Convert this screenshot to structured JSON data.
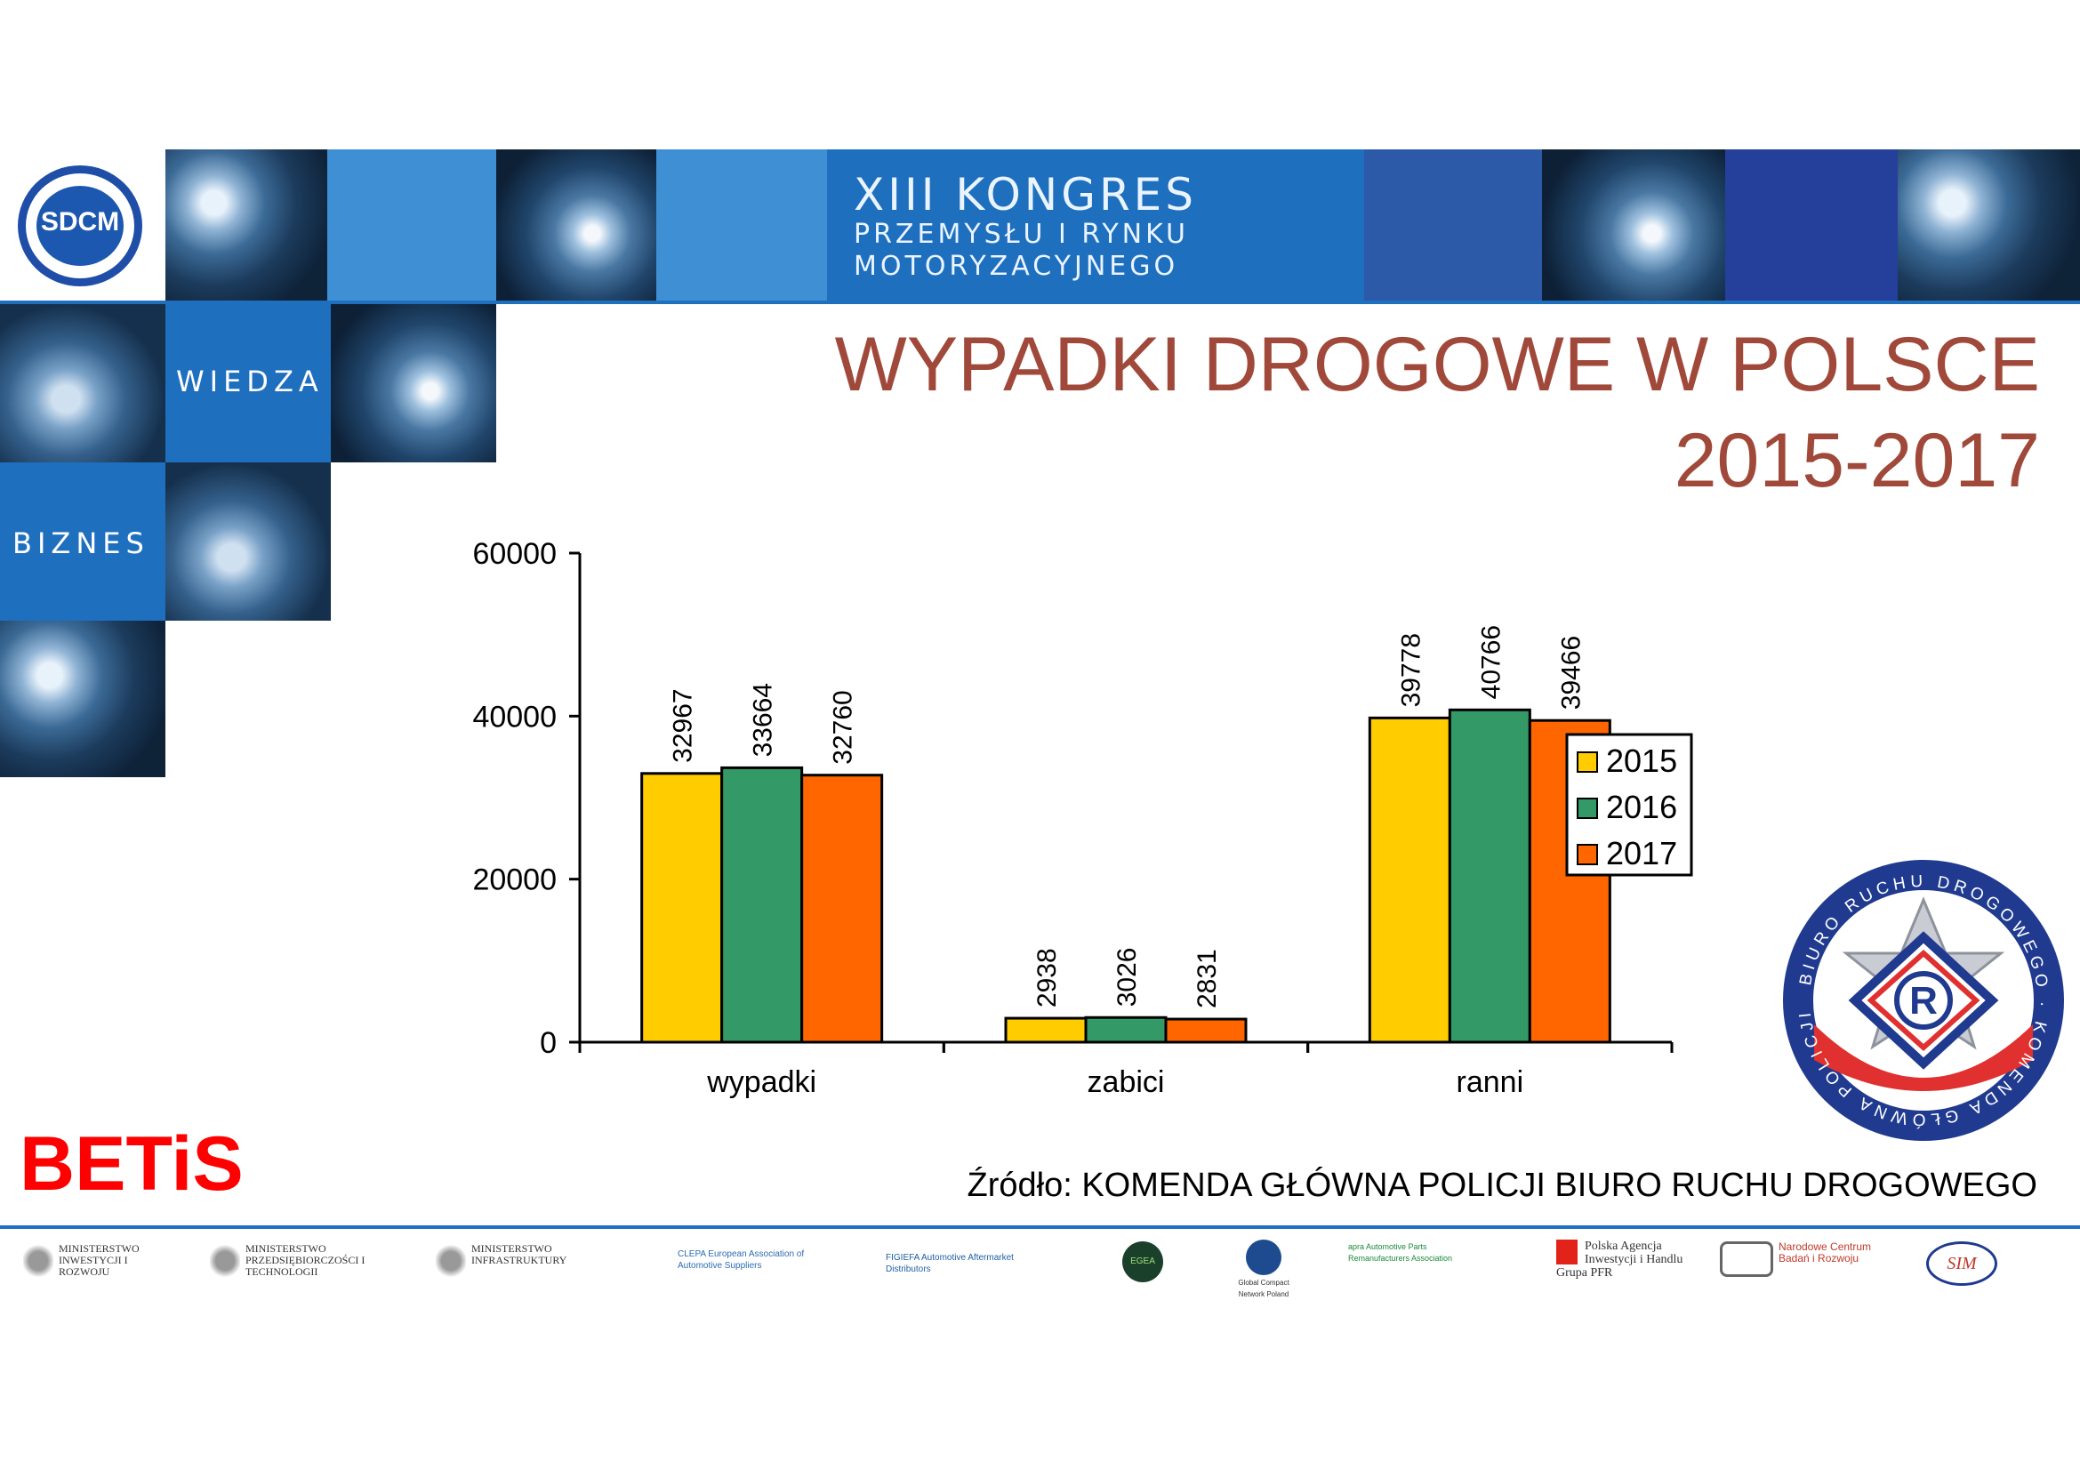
{
  "header": {
    "logo_text": "SDCM",
    "banner_line1": "XIII  KONGRES",
    "banner_line2": "PRZEMYSŁU  I  RYNKU",
    "banner_line3": "MOTORYZACYJNEGO",
    "wiedza": "WIEDZA",
    "biznes": "BIZNES"
  },
  "slide": {
    "title_line1": "WYPADKI DROGOWE W POLSCE",
    "title_line2": "2015-2017",
    "source": "Źródło: KOMENDA GŁÓWNA POLICJI BIURO RUCHU DROGOWEGO",
    "betis": "BETiS"
  },
  "police_badge": {
    "ring_text": "BIURO RUCHU DROGOWEGO · KOMENDA GŁÓWNA POLICJI",
    "center_letter": "R"
  },
  "footer_sponsors": [
    "MINISTERSTWO INWESTYCJI I ROZWOJU",
    "MINISTERSTWO PRZEDSIĘBIORCZOŚCI I TECHNOLOGII",
    "MINISTERSTWO INFRASTRUKTURY",
    "CLEPA European Association of Automotive Suppliers",
    "FIGIEFA Automotive Aftermarket Distributors",
    "EGEA",
    "Global Compact Network Poland",
    "apra Automotive Parts Remanufacturers Association",
    "Polska Agencja Inwestycji i Handlu Grupa PFR",
    "Narodowe Centrum Badań i Rozwoju",
    "SIM"
  ],
  "colors": {
    "y2015": "#ffcc00",
    "y2016": "#339966",
    "y2017": "#ff6600",
    "title": "#a0493a",
    "betis": "#ff0000",
    "rule": "#1f6fbf"
  },
  "chart_data": {
    "type": "bar",
    "categories": [
      "wypadki",
      "zabici",
      "ranni"
    ],
    "series": [
      {
        "name": "2015",
        "values": [
          32967,
          2938,
          39778
        ]
      },
      {
        "name": "2016",
        "values": [
          33664,
          3026,
          40766
        ]
      },
      {
        "name": "2017",
        "values": [
          32760,
          2831,
          39466
        ]
      }
    ],
    "yticks": [
      "0",
      "20000",
      "40000",
      "60000"
    ],
    "ylim": [
      0,
      60000
    ],
    "legend_position": "right",
    "grid": false
  }
}
